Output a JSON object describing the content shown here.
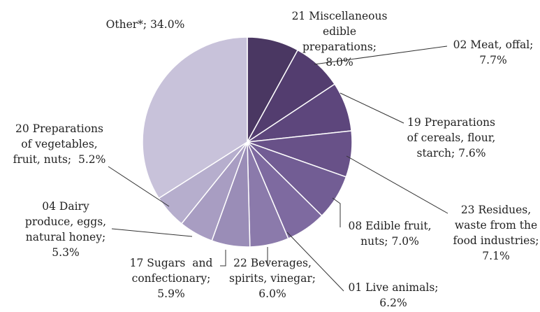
{
  "chart_data": {
    "type": "pie",
    "title": "",
    "slices": [
      {
        "lines": [
          "21 Miscellaneous",
          "edible",
          "preparations;",
          "8.0%"
        ],
        "value": 8.0,
        "color": "#4a3762"
      },
      {
        "lines": [
          "02 Meat, offal;",
          "7.7%"
        ],
        "value": 7.7,
        "color": "#533d6f"
      },
      {
        "lines": [
          "19 Preparations",
          "of cereals, flour,",
          "starch; 7.6%"
        ],
        "value": 7.6,
        "color": "#5d467c"
      },
      {
        "lines": [
          "23 Residues,",
          "waste from the",
          "food industries;",
          "7.1%"
        ],
        "value": 7.1,
        "color": "#685188"
      },
      {
        "lines": [
          "08 Edible fruit,",
          "nuts; 7.0%"
        ],
        "value": 7.0,
        "color": "#725d94"
      },
      {
        "lines": [
          "01 Live animals;",
          "6.2%"
        ],
        "value": 6.2,
        "color": "#7e6aa0"
      },
      {
        "lines": [
          "22 Beverages,",
          "spirits, vinegar;",
          "6.0%"
        ],
        "value": 6.0,
        "color": "#8b7aab"
      },
      {
        "lines": [
          "17 Sugars  and",
          "confectionary;",
          "5.9%"
        ],
        "value": 5.9,
        "color": "#9a8db7"
      },
      {
        "lines": [
          "04 Dairy",
          "produce, eggs,",
          "natural honey;",
          "5.3%"
        ],
        "value": 5.3,
        "color": "#a89dc2"
      },
      {
        "lines": [
          "20 Preparations",
          "of vegetables,",
          "fruit, nuts;  5.2%"
        ],
        "value": 5.2,
        "color": "#b6aecd"
      },
      {
        "lines": [
          "Other*; 34.0%"
        ],
        "value": 34.0,
        "color": "#c8c2da"
      }
    ]
  }
}
